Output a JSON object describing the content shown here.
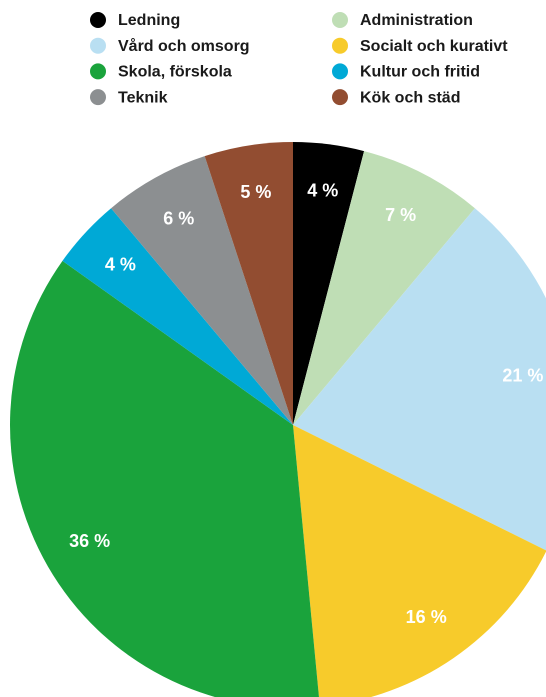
{
  "chart_data": {
    "type": "pie",
    "categories": [
      "Ledning",
      "Administration",
      "Vård och omsorg",
      "Socialt och kurativt",
      "Skola, förskola",
      "Kultur och fritid",
      "Teknik",
      "Kök och städ"
    ],
    "values": [
      4,
      7,
      21,
      16,
      36,
      4,
      6,
      5
    ],
    "value_labels": [
      "4 %",
      "7 %",
      "21 %",
      "16 %",
      "36 %",
      "4 %",
      "6 %",
      "5 %"
    ],
    "colors": [
      "#000000",
      "#bfdeb5",
      "#b9dff2",
      "#f7cb2b",
      "#1aa33c",
      "#00a9d6",
      "#8c8f91",
      "#924d31"
    ]
  }
}
